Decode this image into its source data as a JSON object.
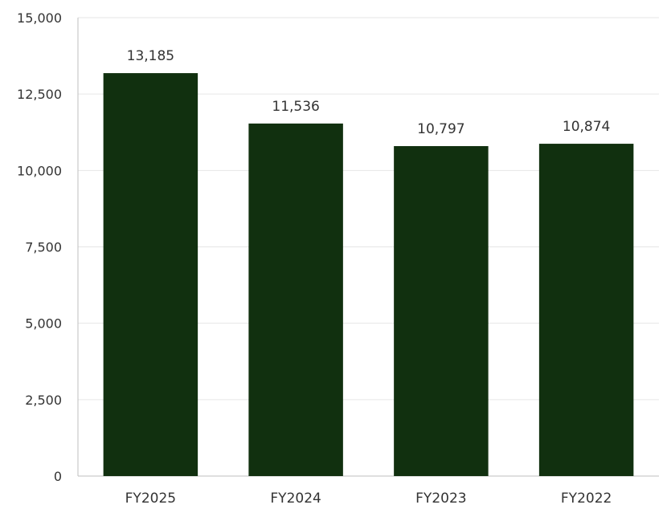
{
  "chart_data": {
    "type": "bar",
    "categories": [
      "FY2025",
      "FY2024",
      "FY2023",
      "FY2022"
    ],
    "values": [
      13185,
      11536,
      10797,
      10874
    ],
    "data_labels": [
      "13,185",
      "11,536",
      "10,797",
      "10,874"
    ],
    "title": "",
    "xlabel": "",
    "ylabel": "",
    "ylim": [
      0,
      15000
    ],
    "yticks": [
      0,
      2500,
      5000,
      7500,
      10000,
      12500,
      15000
    ],
    "ytick_labels": [
      "0",
      "2,500",
      "5,000",
      "7,500",
      "10,000",
      "12,500",
      "15,000"
    ],
    "grid": true,
    "legend": "none",
    "bar_color": "#11300f"
  }
}
